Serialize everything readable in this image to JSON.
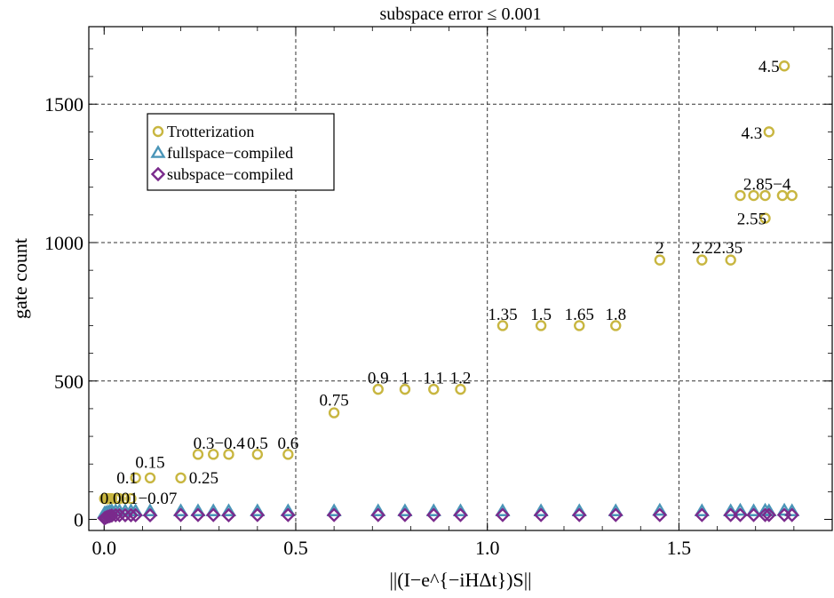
{
  "chart_data": {
    "type": "scatter",
    "title": "subspace error ≤ 0.001",
    "xlabel": "||(I−e^{−iHΔt})S||",
    "ylabel": "gate count",
    "xlim": [
      -0.04,
      1.9
    ],
    "ylim": [
      -40,
      1780
    ],
    "x_ticks": [
      0.0,
      0.5,
      1.0,
      1.5
    ],
    "x_tick_labels": [
      "0.0",
      "0.5",
      "1.0",
      "1.5"
    ],
    "y_ticks": [
      0,
      500,
      1000,
      1500
    ],
    "y_tick_labels": [
      "0",
      "500",
      "1000",
      "1500"
    ],
    "grid": "dashed at major ticks",
    "legend": {
      "placement": "top-left",
      "entries": [
        "Trotterization",
        "fullspace−compiled",
        "subspace−compiled"
      ]
    },
    "series": [
      {
        "name": "Trotterization",
        "marker": "circle",
        "color": "#c8b640",
        "points": [
          [
            0.001,
            75
          ],
          [
            0.005,
            75
          ],
          [
            0.01,
            75
          ],
          [
            0.015,
            75
          ],
          [
            0.02,
            75
          ],
          [
            0.03,
            75
          ],
          [
            0.04,
            75
          ],
          [
            0.055,
            75
          ],
          [
            0.07,
            75
          ],
          [
            0.082,
            150
          ],
          [
            0.12,
            150
          ],
          [
            0.2,
            150
          ],
          [
            0.245,
            235
          ],
          [
            0.285,
            235
          ],
          [
            0.325,
            235
          ],
          [
            0.4,
            235
          ],
          [
            0.48,
            235
          ],
          [
            0.6,
            385
          ],
          [
            0.715,
            470
          ],
          [
            0.785,
            470
          ],
          [
            0.86,
            470
          ],
          [
            0.93,
            470
          ],
          [
            1.04,
            700
          ],
          [
            1.14,
            700
          ],
          [
            1.24,
            700
          ],
          [
            1.335,
            700
          ],
          [
            1.45,
            937
          ],
          [
            1.56,
            937
          ],
          [
            1.635,
            937
          ],
          [
            1.725,
            1088
          ],
          [
            1.66,
            1170
          ],
          [
            1.695,
            1170
          ],
          [
            1.725,
            1170
          ],
          [
            1.77,
            1170
          ],
          [
            1.795,
            1170
          ],
          [
            1.735,
            1400
          ],
          [
            1.775,
            1638
          ]
        ]
      },
      {
        "name": "fullspace−compiled",
        "marker": "triangle",
        "color": "#4a95b8",
        "points": [
          [
            0.001,
            22
          ],
          [
            0.005,
            24
          ],
          [
            0.01,
            26
          ],
          [
            0.015,
            28
          ],
          [
            0.02,
            30
          ],
          [
            0.03,
            30
          ],
          [
            0.04,
            30
          ],
          [
            0.055,
            30
          ],
          [
            0.07,
            30
          ],
          [
            0.082,
            30
          ],
          [
            0.12,
            30
          ],
          [
            0.2,
            30
          ],
          [
            0.245,
            30
          ],
          [
            0.285,
            30
          ],
          [
            0.325,
            30
          ],
          [
            0.4,
            30
          ],
          [
            0.48,
            30
          ],
          [
            0.6,
            30
          ],
          [
            0.715,
            30
          ],
          [
            0.785,
            30
          ],
          [
            0.86,
            30
          ],
          [
            0.93,
            30
          ],
          [
            1.04,
            30
          ],
          [
            1.14,
            30
          ],
          [
            1.24,
            30
          ],
          [
            1.335,
            30
          ],
          [
            1.45,
            32
          ],
          [
            1.56,
            30
          ],
          [
            1.635,
            30
          ],
          [
            1.66,
            32
          ],
          [
            1.695,
            30
          ],
          [
            1.725,
            32
          ],
          [
            1.735,
            30
          ],
          [
            1.775,
            32
          ],
          [
            1.795,
            30
          ]
        ]
      },
      {
        "name": "subspace−compiled",
        "marker": "diamond",
        "color": "#7a2a8c",
        "points": [
          [
            0.001,
            4
          ],
          [
            0.005,
            7
          ],
          [
            0.01,
            10
          ],
          [
            0.015,
            12
          ],
          [
            0.02,
            14
          ],
          [
            0.03,
            15
          ],
          [
            0.04,
            15
          ],
          [
            0.055,
            15
          ],
          [
            0.07,
            15
          ],
          [
            0.082,
            15
          ],
          [
            0.12,
            15
          ],
          [
            0.2,
            16
          ],
          [
            0.245,
            16
          ],
          [
            0.285,
            16
          ],
          [
            0.325,
            15
          ],
          [
            0.4,
            16
          ],
          [
            0.48,
            16
          ],
          [
            0.6,
            16
          ],
          [
            0.715,
            16
          ],
          [
            0.785,
            16
          ],
          [
            0.86,
            16
          ],
          [
            0.93,
            16
          ],
          [
            1.04,
            16
          ],
          [
            1.14,
            16
          ],
          [
            1.24,
            16
          ],
          [
            1.335,
            16
          ],
          [
            1.45,
            16
          ],
          [
            1.56,
            16
          ],
          [
            1.635,
            16
          ],
          [
            1.66,
            16
          ],
          [
            1.695,
            16
          ],
          [
            1.725,
            16
          ],
          [
            1.735,
            16
          ],
          [
            1.775,
            16
          ],
          [
            1.795,
            16
          ]
        ]
      }
    ],
    "annotations": [
      {
        "text": "0.001−0.07",
        "x": 0.09,
        "y": 75
      },
      {
        "text": "0.1",
        "x": 0.06,
        "y": 150
      },
      {
        "text": "0.15",
        "x": 0.12,
        "y": 205
      },
      {
        "text": "0.25",
        "x": 0.26,
        "y": 150
      },
      {
        "text": "0.3−0.4",
        "x": 0.3,
        "y": 275
      },
      {
        "text": "0.5",
        "x": 0.4,
        "y": 275
      },
      {
        "text": "0.6",
        "x": 0.48,
        "y": 275
      },
      {
        "text": "0.75",
        "x": 0.6,
        "y": 430
      },
      {
        "text": "0.9",
        "x": 0.715,
        "y": 510
      },
      {
        "text": "1",
        "x": 0.785,
        "y": 510
      },
      {
        "text": "1.1",
        "x": 0.86,
        "y": 510
      },
      {
        "text": "1.2",
        "x": 0.93,
        "y": 510
      },
      {
        "text": "1.35",
        "x": 1.04,
        "y": 740
      },
      {
        "text": "1.5",
        "x": 1.14,
        "y": 740
      },
      {
        "text": "1.65",
        "x": 1.24,
        "y": 740
      },
      {
        "text": "1.8",
        "x": 1.335,
        "y": 740
      },
      {
        "text": "2",
        "x": 1.45,
        "y": 980
      },
      {
        "text": "2.22.35",
        "x": 1.6,
        "y": 980
      },
      {
        "text": "2.55",
        "x": 1.69,
        "y": 1085
      },
      {
        "text": "2.85−4",
        "x": 1.73,
        "y": 1210
      },
      {
        "text": "4.3",
        "x": 1.69,
        "y": 1395
      },
      {
        "text": "4.5",
        "x": 1.735,
        "y": 1635
      }
    ]
  }
}
